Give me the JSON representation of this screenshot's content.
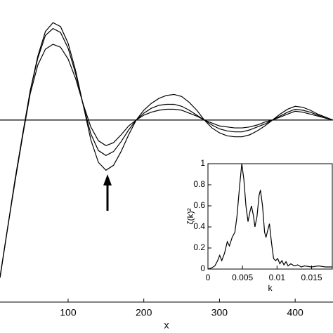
{
  "chart_data": [
    {
      "type": "line",
      "xlabel": "x",
      "x": [
        10,
        20,
        30,
        40,
        50,
        60,
        70,
        80,
        90,
        100,
        110,
        120,
        130,
        140,
        150,
        160,
        170,
        180,
        190,
        200,
        210,
        220,
        230,
        240,
        250,
        260,
        270,
        280,
        290,
        300,
        310,
        320,
        330,
        340,
        350,
        360,
        370,
        380,
        390,
        400,
        410,
        420,
        430,
        440,
        450
      ],
      "series": [
        {
          "color": "#000000",
          "values": [
            -1.6,
            -1.1,
            -0.6,
            -0.15,
            0.3,
            0.65,
            0.9,
            0.99,
            0.95,
            0.78,
            0.5,
            0.15,
            -0.2,
            -0.43,
            -0.51,
            -0.46,
            -0.32,
            -0.15,
            0.0,
            0.1,
            0.17,
            0.22,
            0.25,
            0.26,
            0.24,
            0.18,
            0.1,
            0.0,
            -0.08,
            -0.13,
            -0.16,
            -0.17,
            -0.17,
            -0.15,
            -0.11,
            -0.06,
            0.0,
            0.06,
            0.11,
            0.14,
            0.13,
            0.1,
            0.06,
            0.03,
            0.0
          ]
        },
        {
          "color": "#000000",
          "values": [
            -1.6,
            -1.1,
            -0.6,
            -0.14,
            0.3,
            0.63,
            0.86,
            0.93,
            0.89,
            0.73,
            0.47,
            0.15,
            -0.14,
            -0.31,
            -0.36,
            -0.32,
            -0.22,
            -0.1,
            0.0,
            0.07,
            0.12,
            0.15,
            0.16,
            0.16,
            0.14,
            0.1,
            0.05,
            0.0,
            -0.05,
            -0.09,
            -0.11,
            -0.12,
            -0.12,
            -0.1,
            -0.07,
            -0.04,
            0.0,
            0.04,
            0.08,
            0.11,
            0.1,
            0.08,
            0.05,
            0.02,
            0.0
          ]
        },
        {
          "color": "#000000",
          "values": [
            -1.6,
            -1.1,
            -0.62,
            -0.16,
            0.27,
            0.56,
            0.72,
            0.77,
            0.74,
            0.62,
            0.42,
            0.16,
            -0.07,
            -0.21,
            -0.26,
            -0.23,
            -0.15,
            -0.06,
            0.0,
            0.05,
            0.08,
            0.1,
            0.11,
            0.11,
            0.1,
            0.07,
            0.04,
            0.0,
            -0.03,
            -0.06,
            -0.07,
            -0.08,
            -0.08,
            -0.07,
            -0.05,
            -0.02,
            0.0,
            0.03,
            0.06,
            0.09,
            0.08,
            0.06,
            0.04,
            0.02,
            0.0
          ]
        }
      ],
      "hline": 0,
      "xlim": [
        10,
        450
      ],
      "xticks": [
        100,
        200,
        300,
        400
      ],
      "ylim": [
        -1.85,
        1.22
      ]
    },
    {
      "type": "line",
      "xlabel": "k",
      "ylabel": "ζ(k)²",
      "color": "#000000",
      "x": [
        0,
        0.0005,
        0.001,
        0.0014,
        0.0017,
        0.002,
        0.0024,
        0.0028,
        0.0031,
        0.0035,
        0.0039,
        0.0042,
        0.0046,
        0.0049,
        0.0052,
        0.0055,
        0.0058,
        0.0061,
        0.0063,
        0.0066,
        0.0068,
        0.0071,
        0.0074,
        0.0076,
        0.0079,
        0.0082,
        0.0084,
        0.0087,
        0.0089,
        0.0092,
        0.0095,
        0.0098,
        0.0101,
        0.0104,
        0.0107,
        0.011,
        0.0113,
        0.0116,
        0.012,
        0.0125,
        0.013,
        0.0135,
        0.014,
        0.015,
        0.016,
        0.017,
        0.018
      ],
      "values": [
        0,
        0.01,
        0.03,
        0.08,
        0.13,
        0.08,
        0.15,
        0.26,
        0.22,
        0.3,
        0.35,
        0.5,
        0.8,
        1.0,
        0.85,
        0.6,
        0.45,
        0.55,
        0.6,
        0.5,
        0.4,
        0.5,
        0.7,
        0.75,
        0.6,
        0.35,
        0.3,
        0.38,
        0.43,
        0.25,
        0.1,
        0.08,
        0.1,
        0.05,
        0.08,
        0.04,
        0.07,
        0.03,
        0.05,
        0.03,
        0.04,
        0.02,
        0.03,
        0.02,
        0.03,
        0.02,
        0.02
      ],
      "xlim": [
        0,
        0.018
      ],
      "xticks": [
        0,
        0.005,
        0.01,
        0.015
      ],
      "ylim": [
        0,
        1
      ],
      "yticks": [
        0,
        0.2,
        0.4,
        0.6,
        0.8,
        1
      ]
    }
  ]
}
